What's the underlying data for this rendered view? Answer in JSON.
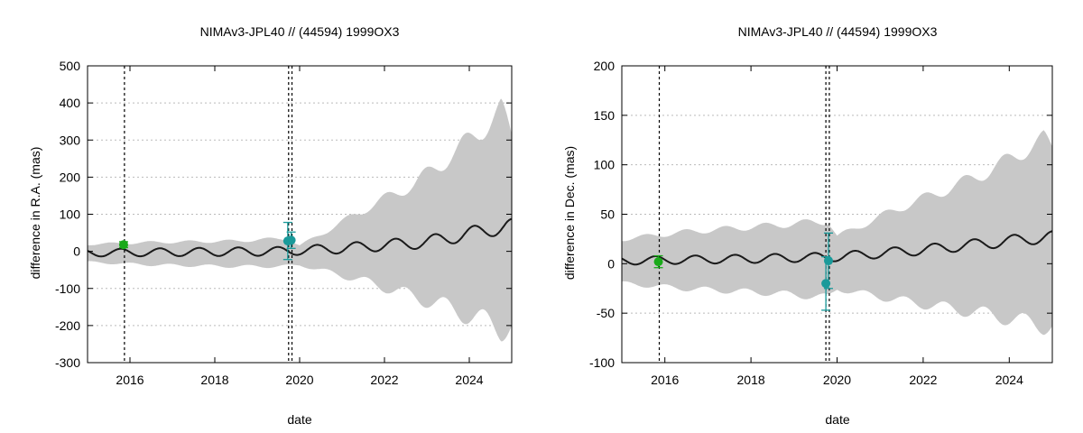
{
  "colors": {
    "band": "#c8c8c8",
    "model_line": "#1a1a1a",
    "obs_green": "#1aaa1a",
    "obs_teal": "#1a9a9a",
    "grid": "#bbbbbb",
    "event_line": "#000000"
  },
  "chart_data": [
    {
      "type": "line",
      "title": "NIMAv3-JPL40 // (44594) 1999OX3",
      "xlabel": "date",
      "ylabel": "difference in R.A. (mas)",
      "xlim": [
        2015.0,
        2025.0
      ],
      "ylim": [
        -300,
        500
      ],
      "xticks": [
        2016,
        2018,
        2020,
        2022,
        2024
      ],
      "yticks": [
        -300,
        -200,
        -100,
        0,
        100,
        200,
        300,
        400,
        500
      ],
      "grid": true,
      "vertical_lines": [
        2015.87,
        2019.74,
        2019.82
      ],
      "model": {
        "offset": 0,
        "trend": [
          [
            2015.0,
            -4
          ],
          [
            2019.5,
            0
          ],
          [
            2021.0,
            8
          ],
          [
            2023.0,
            25
          ],
          [
            2024.9,
            68
          ],
          [
            2025.0,
            68
          ]
        ],
        "amp": [
          [
            2015.0,
            10
          ],
          [
            2020.0,
            12
          ],
          [
            2022.0,
            15
          ],
          [
            2024.9,
            20
          ],
          [
            2025.0,
            20
          ]
        ],
        "period": 0.925,
        "phase": 2015.55
      },
      "band": {
        "upper": [
          [
            2015.0,
            22
          ],
          [
            2016.5,
            28
          ],
          [
            2018.5,
            32
          ],
          [
            2019.7,
            40
          ],
          [
            2020.0,
            18
          ],
          [
            2020.9,
            80
          ],
          [
            2021.6,
            130
          ],
          [
            2022.7,
            200
          ],
          [
            2023.7,
            295
          ],
          [
            2024.75,
            415
          ],
          [
            2025.0,
            340
          ]
        ],
        "lower": [
          [
            2015.0,
            -32
          ],
          [
            2016.5,
            -40
          ],
          [
            2018.5,
            -45
          ],
          [
            2019.7,
            -45
          ],
          [
            2020.0,
            -40
          ],
          [
            2020.9,
            -70
          ],
          [
            2021.6,
            -95
          ],
          [
            2022.7,
            -140
          ],
          [
            2023.7,
            -185
          ],
          [
            2024.75,
            -245
          ],
          [
            2025.0,
            -225
          ]
        ],
        "period": 0.925,
        "phase": 2015.55,
        "ripple": 0.22
      },
      "points": [
        {
          "x": 2015.85,
          "y": 18,
          "err": 8,
          "color": "obs_green"
        },
        {
          "x": 2019.72,
          "y": 28,
          "err": 50,
          "color": "obs_teal"
        },
        {
          "x": 2019.8,
          "y": 30,
          "err": 22,
          "color": "obs_teal"
        }
      ]
    },
    {
      "type": "line",
      "title": "NIMAv3-JPL40 // (44594) 1999OX3",
      "xlabel": "date",
      "ylabel": "difference in Dec. (mas)",
      "xlim": [
        2015.0,
        2025.0
      ],
      "ylim": [
        -100,
        200
      ],
      "xticks": [
        2016,
        2018,
        2020,
        2022,
        2024
      ],
      "yticks": [
        -100,
        -50,
        0,
        50,
        100,
        150,
        200
      ],
      "grid": true,
      "vertical_lines": [
        2015.87,
        2019.74,
        2019.82
      ],
      "model": {
        "offset": 0,
        "trend": [
          [
            2015.0,
            3
          ],
          [
            2018.0,
            5
          ],
          [
            2020.0,
            7
          ],
          [
            2022.0,
            14
          ],
          [
            2024.9,
            27
          ],
          [
            2025.0,
            27
          ]
        ],
        "amp": [
          [
            2015.0,
            4
          ],
          [
            2020.0,
            4.5
          ],
          [
            2025.0,
            6
          ]
        ],
        "period": 0.925,
        "phase": 2015.55
      },
      "band": {
        "upper": [
          [
            2015.0,
            27
          ],
          [
            2016.5,
            35
          ],
          [
            2018.5,
            42
          ],
          [
            2019.8,
            47
          ],
          [
            2020.0,
            30
          ],
          [
            2021.5,
            62
          ],
          [
            2022.5,
            80
          ],
          [
            2023.5,
            100
          ],
          [
            2024.8,
            135
          ],
          [
            2025.0,
            125
          ]
        ],
        "lower": [
          [
            2015.0,
            -22
          ],
          [
            2016.5,
            -28
          ],
          [
            2018.5,
            -33
          ],
          [
            2019.8,
            -38
          ],
          [
            2020.0,
            -28
          ],
          [
            2021.5,
            -42
          ],
          [
            2022.5,
            -50
          ],
          [
            2023.5,
            -58
          ],
          [
            2024.8,
            -72
          ],
          [
            2025.0,
            -70
          ]
        ],
        "period": 0.925,
        "phase": 2015.55,
        "ripple": 0.18
      },
      "points": [
        {
          "x": 2015.85,
          "y": 2,
          "err": 6,
          "color": "obs_green"
        },
        {
          "x": 2019.74,
          "y": -20,
          "err": 27,
          "color": "obs_teal"
        },
        {
          "x": 2019.8,
          "y": 3,
          "err": 28,
          "color": "obs_teal"
        }
      ]
    }
  ]
}
